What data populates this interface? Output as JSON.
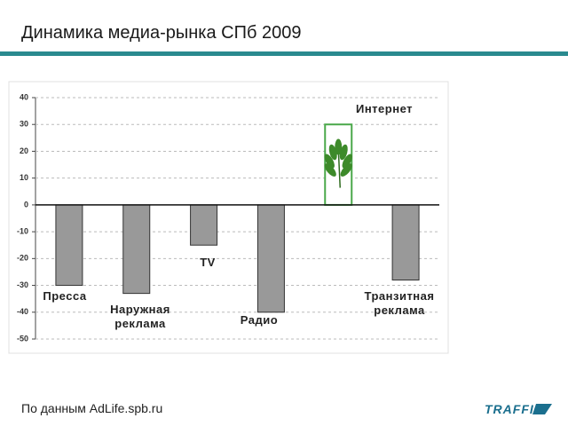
{
  "title": "Динамика медиа-рынка СПб 2009",
  "footer": "По данным AdLife.spb.ru",
  "logo": "TRAFFIC",
  "chart_data": {
    "type": "bar",
    "categories": [
      "Пресса",
      "Наружная реклама",
      "TV",
      "Радио",
      "Интернет",
      "Транзитная реклама"
    ],
    "values": [
      -30,
      -33,
      -15,
      -40,
      30,
      -28
    ],
    "colors": [
      "#999999",
      "#999999",
      "#999999",
      "#999999",
      "#ffffff",
      "#999999"
    ],
    "edge_colors": [
      "#333333",
      "#333333",
      "#333333",
      "#333333",
      "#4aa84a",
      "#333333"
    ],
    "ylim": [
      -50,
      40
    ],
    "yticks": [
      -50,
      -40,
      -30,
      -20,
      -10,
      0,
      10,
      20,
      30,
      40
    ],
    "grid": true
  }
}
